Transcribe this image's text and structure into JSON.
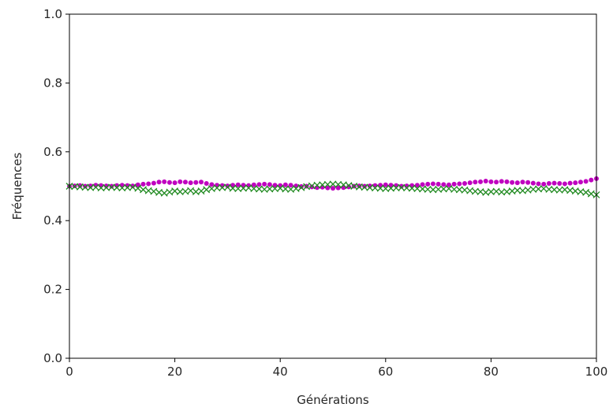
{
  "chart_data": {
    "type": "scatter",
    "title": "",
    "xlabel": "Générations",
    "ylabel": "Fréquences",
    "xlim": [
      0,
      100
    ],
    "ylim": [
      0,
      1.0
    ],
    "x_ticks": [
      "0",
      "20",
      "40",
      "60",
      "80",
      "100"
    ],
    "y_ticks": [
      "0.0",
      "0.2",
      "0.4",
      "0.6",
      "0.8",
      "1.0"
    ],
    "grid": false,
    "legend": "none",
    "x": [
      0,
      1,
      2,
      3,
      4,
      5,
      6,
      7,
      8,
      9,
      10,
      11,
      12,
      13,
      14,
      15,
      16,
      17,
      18,
      19,
      20,
      21,
      22,
      23,
      24,
      25,
      26,
      27,
      28,
      29,
      30,
      31,
      32,
      33,
      34,
      35,
      36,
      37,
      38,
      39,
      40,
      41,
      42,
      43,
      44,
      45,
      46,
      47,
      48,
      49,
      50,
      51,
      52,
      53,
      54,
      55,
      56,
      57,
      58,
      59,
      60,
      61,
      62,
      63,
      64,
      65,
      66,
      67,
      68,
      69,
      70,
      71,
      72,
      73,
      74,
      75,
      76,
      77,
      78,
      79,
      80,
      81,
      82,
      83,
      84,
      85,
      86,
      87,
      88,
      89,
      90,
      91,
      92,
      93,
      94,
      95,
      96,
      97,
      98,
      99,
      100
    ],
    "series": [
      {
        "color": "#bf00bf",
        "marker": "dot",
        "values": [
          0.5,
          0.501,
          0.502,
          0.5,
          0.501,
          0.503,
          0.502,
          0.501,
          0.5,
          0.502,
          0.503,
          0.502,
          0.501,
          0.504,
          0.506,
          0.507,
          0.509,
          0.512,
          0.513,
          0.511,
          0.51,
          0.513,
          0.512,
          0.51,
          0.511,
          0.512,
          0.508,
          0.505,
          0.503,
          0.502,
          0.501,
          0.503,
          0.504,
          0.503,
          0.502,
          0.504,
          0.505,
          0.506,
          0.505,
          0.503,
          0.502,
          0.504,
          0.503,
          0.501,
          0.499,
          0.5,
          0.498,
          0.496,
          0.497,
          0.495,
          0.494,
          0.495,
          0.496,
          0.498,
          0.5,
          0.501,
          0.5,
          0.501,
          0.502,
          0.503,
          0.504,
          0.503,
          0.502,
          0.5,
          0.501,
          0.502,
          0.503,
          0.505,
          0.506,
          0.507,
          0.506,
          0.505,
          0.504,
          0.506,
          0.507,
          0.508,
          0.51,
          0.512,
          0.513,
          0.515,
          0.513,
          0.512,
          0.514,
          0.513,
          0.511,
          0.51,
          0.512,
          0.511,
          0.509,
          0.507,
          0.506,
          0.508,
          0.509,
          0.508,
          0.507,
          0.509,
          0.51,
          0.512,
          0.514,
          0.518,
          0.522
        ]
      },
      {
        "color": "#228b22",
        "marker": "x",
        "values": [
          0.5,
          0.499,
          0.498,
          0.497,
          0.496,
          0.497,
          0.495,
          0.496,
          0.497,
          0.496,
          0.495,
          0.496,
          0.497,
          0.494,
          0.49,
          0.487,
          0.485,
          0.482,
          0.48,
          0.483,
          0.486,
          0.484,
          0.485,
          0.487,
          0.484,
          0.486,
          0.49,
          0.493,
          0.495,
          0.496,
          0.497,
          0.494,
          0.493,
          0.494,
          0.495,
          0.493,
          0.492,
          0.491,
          0.492,
          0.493,
          0.494,
          0.492,
          0.491,
          0.493,
          0.496,
          0.499,
          0.501,
          0.503,
          0.504,
          0.505,
          0.506,
          0.505,
          0.504,
          0.502,
          0.5,
          0.498,
          0.497,
          0.496,
          0.495,
          0.494,
          0.493,
          0.494,
          0.495,
          0.496,
          0.495,
          0.494,
          0.493,
          0.492,
          0.491,
          0.49,
          0.491,
          0.492,
          0.493,
          0.491,
          0.49,
          0.489,
          0.487,
          0.485,
          0.484,
          0.482,
          0.484,
          0.485,
          0.483,
          0.484,
          0.486,
          0.488,
          0.487,
          0.489,
          0.491,
          0.492,
          0.493,
          0.491,
          0.49,
          0.489,
          0.49,
          0.488,
          0.486,
          0.484,
          0.482,
          0.478,
          0.475
        ]
      }
    ]
  }
}
